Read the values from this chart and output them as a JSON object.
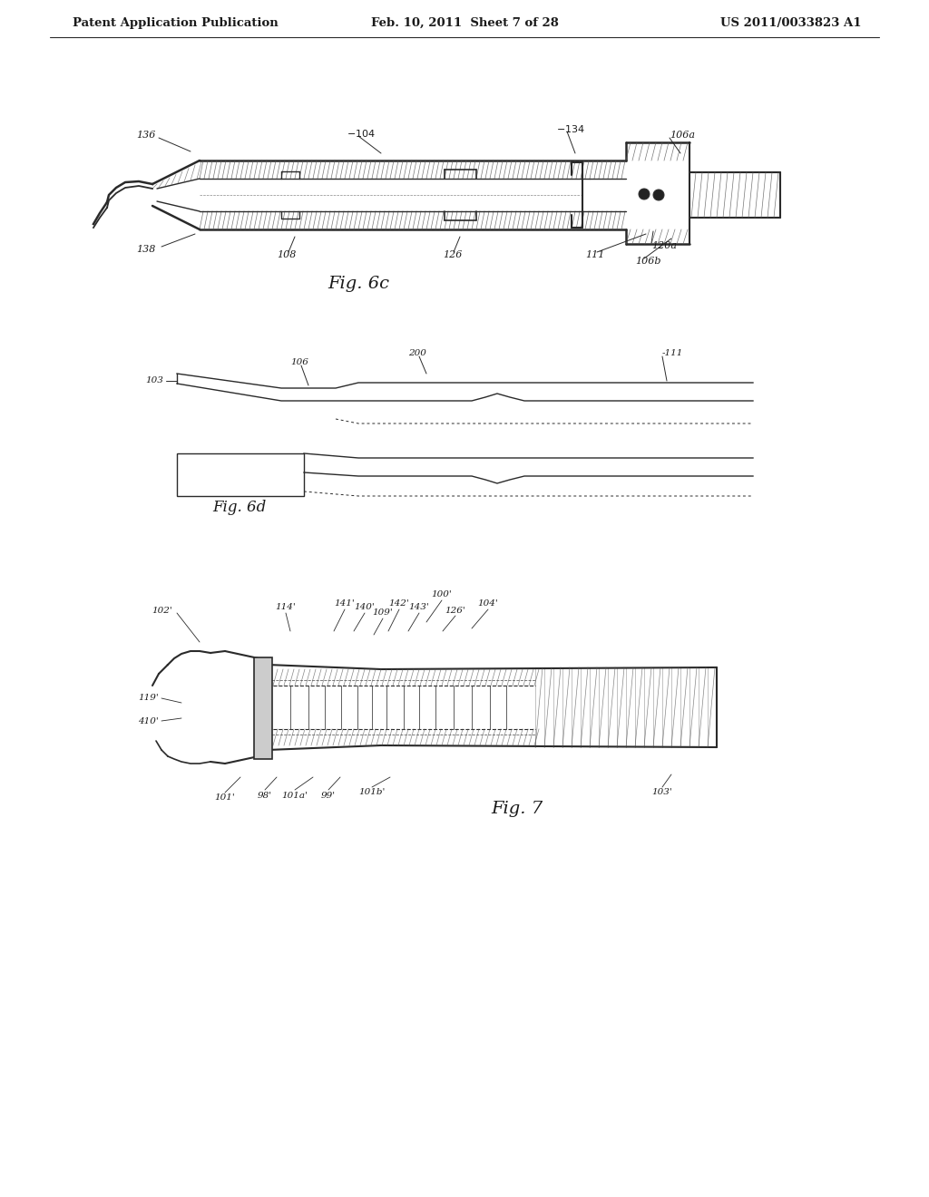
{
  "background_color": "#ffffff",
  "header_left": "Patent Application Publication",
  "header_mid": "Feb. 10, 2011  Sheet 7 of 28",
  "header_right": "US 2011/0033823 A1",
  "fig6c_label": "Fig. 6c",
  "fig6d_label": "Fig. 6d",
  "fig7_label": "Fig. 7",
  "text_color": "#1a1a1a",
  "line_color": "#2a2a2a"
}
